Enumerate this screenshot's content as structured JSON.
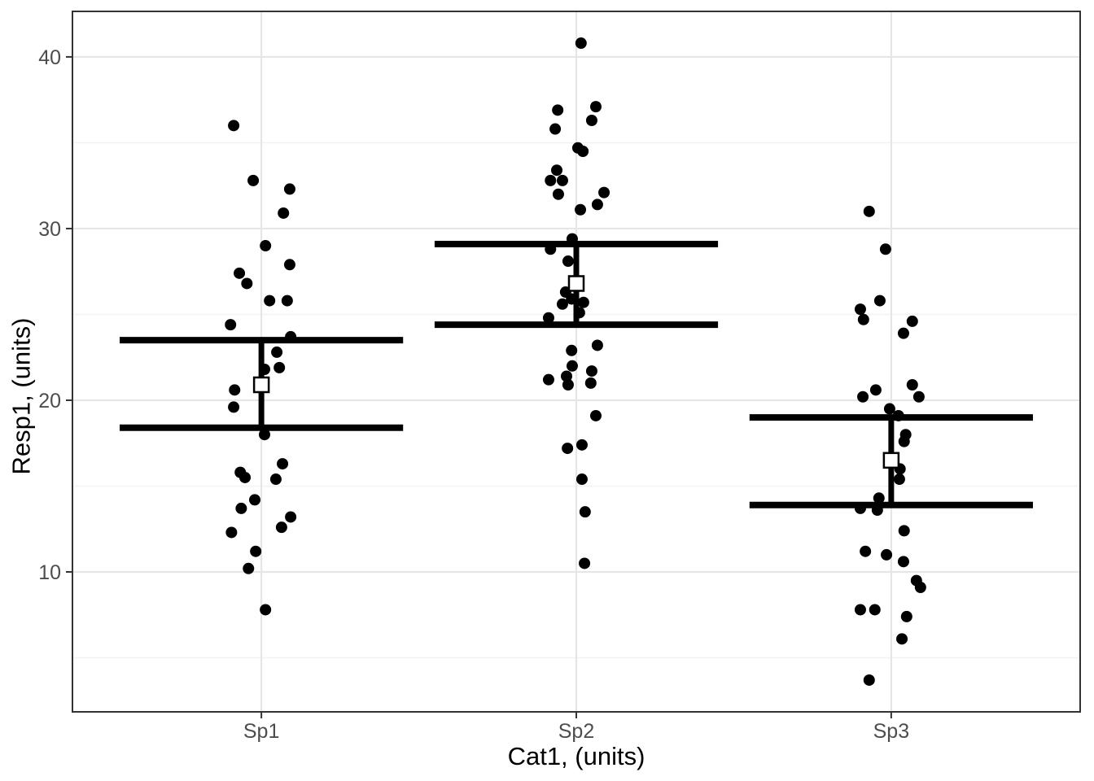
{
  "chart_data": {
    "type": "scatter",
    "subtype": "jittered-points-with-mean-and-errorbars",
    "title": "",
    "xlabel": "Cat1, (units)",
    "ylabel": "Resp1, (units)",
    "categories": [
      "Sp1",
      "Sp2",
      "Sp3"
    ],
    "y_axis": {
      "ticks": [
        10,
        20,
        30,
        40
      ],
      "minor_ticks": [
        5,
        15,
        25,
        35
      ],
      "ylim": [
        1.85,
        42.65
      ]
    },
    "x_axis": {
      "xlim_category_units": [
        0.4,
        3.6
      ]
    },
    "grid": "major-and-minor-horizontal, major-vertical-at-categories",
    "legend": "none",
    "errorbar_halfwidth_category_units": 0.45,
    "jitter_halfwidth_category_units": 0.1,
    "style": {
      "point_color": "#000000",
      "errorbar_color": "#000000",
      "mean_marker": "open-white-square",
      "mean_marker_border": "#000000",
      "panel_background": "#ffffff",
      "panel_border": "#333333",
      "grid_major_color": "#E6E6E6",
      "grid_minor_color": "#F2F2F2",
      "axis_text_color": "#4D4D4D",
      "axis_title_color": "#000000",
      "tick_color": "#333333"
    },
    "series": [
      {
        "name": "Sp1",
        "mean": 20.9,
        "lower": 18.4,
        "upper": 23.5,
        "points": [
          [
            -0.088,
            36.0
          ],
          [
            -0.026,
            32.8
          ],
          [
            0.09,
            32.3
          ],
          [
            0.07,
            30.9
          ],
          [
            0.013,
            29.0
          ],
          [
            0.09,
            27.9
          ],
          [
            -0.07,
            27.4
          ],
          [
            -0.046,
            26.8
          ],
          [
            0.026,
            25.8
          ],
          [
            0.082,
            25.8
          ],
          [
            -0.098,
            24.4
          ],
          [
            0.093,
            23.7
          ],
          [
            0.049,
            22.8
          ],
          [
            0.057,
            21.9
          ],
          [
            0.01,
            21.8
          ],
          [
            -0.085,
            20.6
          ],
          [
            -0.088,
            19.6
          ],
          [
            0.01,
            18.0
          ],
          [
            0.067,
            16.3
          ],
          [
            -0.067,
            15.8
          ],
          [
            -0.052,
            15.5
          ],
          [
            0.046,
            15.4
          ],
          [
            -0.021,
            14.2
          ],
          [
            -0.064,
            13.7
          ],
          [
            0.093,
            13.2
          ],
          [
            0.064,
            12.6
          ],
          [
            -0.095,
            12.3
          ],
          [
            -0.018,
            11.2
          ],
          [
            -0.041,
            10.2
          ],
          [
            0.013,
            7.8
          ]
        ]
      },
      {
        "name": "Sp2",
        "mean": 26.8,
        "lower": 24.4,
        "upper": 29.1,
        "points": [
          [
            0.015,
            40.8
          ],
          [
            0.062,
            37.1
          ],
          [
            -0.059,
            36.9
          ],
          [
            0.049,
            36.3
          ],
          [
            -0.067,
            35.8
          ],
          [
            0.005,
            34.7
          ],
          [
            0.021,
            34.5
          ],
          [
            -0.062,
            33.4
          ],
          [
            -0.082,
            32.8
          ],
          [
            -0.044,
            32.8
          ],
          [
            0.088,
            32.1
          ],
          [
            -0.057,
            32.0
          ],
          [
            0.067,
            31.4
          ],
          [
            0.013,
            31.1
          ],
          [
            -0.013,
            29.4
          ],
          [
            -0.082,
            28.8
          ],
          [
            -0.026,
            28.1
          ],
          [
            -0.034,
            26.3
          ],
          [
            -0.015,
            25.9
          ],
          [
            0.023,
            25.7
          ],
          [
            -0.044,
            25.6
          ],
          [
            0.01,
            25.1
          ],
          [
            -0.088,
            24.8
          ],
          [
            0.067,
            23.2
          ],
          [
            -0.015,
            22.9
          ],
          [
            -0.013,
            22.0
          ],
          [
            0.049,
            21.7
          ],
          [
            -0.031,
            21.4
          ],
          [
            -0.088,
            21.2
          ],
          [
            0.046,
            21.0
          ],
          [
            -0.026,
            20.9
          ],
          [
            0.062,
            19.1
          ],
          [
            0.018,
            17.4
          ],
          [
            -0.028,
            17.2
          ],
          [
            0.018,
            15.4
          ],
          [
            0.028,
            13.5
          ],
          [
            0.026,
            10.5
          ]
        ]
      },
      {
        "name": "Sp3",
        "mean": 16.5,
        "lower": 13.9,
        "upper": 19.0,
        "points": [
          [
            -0.07,
            31.0
          ],
          [
            -0.018,
            28.8
          ],
          [
            -0.036,
            25.8
          ],
          [
            -0.098,
            25.3
          ],
          [
            -0.088,
            24.7
          ],
          [
            0.067,
            24.6
          ],
          [
            0.039,
            23.9
          ],
          [
            0.067,
            20.9
          ],
          [
            -0.049,
            20.6
          ],
          [
            -0.09,
            20.2
          ],
          [
            0.088,
            20.2
          ],
          [
            -0.005,
            19.5
          ],
          [
            0.023,
            19.1
          ],
          [
            0.046,
            18.0
          ],
          [
            0.041,
            17.6
          ],
          [
            0.028,
            16.0
          ],
          [
            0.026,
            15.4
          ],
          [
            -0.039,
            14.3
          ],
          [
            -0.098,
            13.7
          ],
          [
            -0.044,
            13.6
          ],
          [
            0.041,
            12.4
          ],
          [
            -0.082,
            11.2
          ],
          [
            -0.015,
            11.0
          ],
          [
            0.039,
            10.6
          ],
          [
            0.08,
            9.5
          ],
          [
            0.093,
            9.1
          ],
          [
            -0.098,
            7.8
          ],
          [
            -0.052,
            7.8
          ],
          [
            0.049,
            7.4
          ],
          [
            0.034,
            6.1
          ],
          [
            -0.07,
            3.7
          ]
        ]
      }
    ]
  }
}
